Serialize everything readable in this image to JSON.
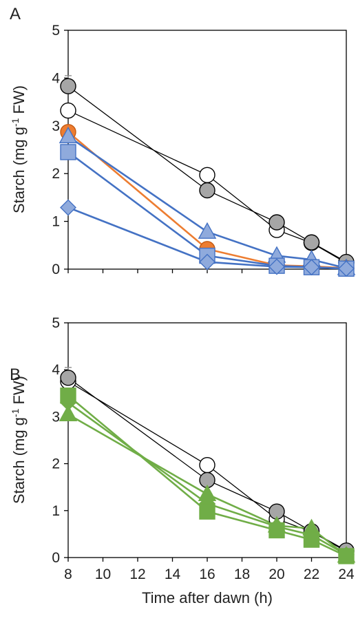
{
  "chart_data": [
    {
      "panel_label": "A",
      "type": "line",
      "xlabel": "",
      "ylabel": "Starch (mg g",
      "ylabel_sup": "-1",
      "ylabel_tail": " FW)",
      "xlim": [
        8,
        24
      ],
      "ylim": [
        0,
        5
      ],
      "yticks": [
        0,
        1,
        2,
        3,
        4,
        5
      ],
      "x": [
        8,
        16,
        20,
        22,
        24
      ],
      "grid": false,
      "series": [
        {
          "marker": "circle",
          "fill": "#ffffff",
          "line": "#000000",
          "values": [
            3.32,
            1.97,
            0.82,
            0.55,
            0.13
          ]
        },
        {
          "marker": "circle",
          "fill": "#a6a6a6",
          "line": "#000000",
          "values": [
            3.83,
            1.65,
            0.98,
            0.56,
            0.15
          ],
          "error": [
            0.22,
            0.05,
            0.05,
            0.05,
            0.03
          ]
        },
        {
          "marker": "circle",
          "fill": "#ed7d31",
          "line": "#ed7d31",
          "values": [
            2.87,
            0.42,
            0.08,
            0.06,
            0.02
          ]
        },
        {
          "marker": "triangle",
          "fill": "#8faadc",
          "line": "#4472c4",
          "values": [
            2.78,
            0.78,
            0.28,
            0.2,
            0.02
          ]
        },
        {
          "marker": "square",
          "fill": "#8faadc",
          "line": "#4472c4",
          "values": [
            2.45,
            0.28,
            0.07,
            0.04,
            0.01
          ]
        },
        {
          "marker": "diamond",
          "fill": "#8faadc",
          "line": "#4472c4",
          "values": [
            1.29,
            0.15,
            0.05,
            0.04,
            0.01
          ]
        }
      ]
    },
    {
      "panel_label": "B",
      "type": "line",
      "xlabel": "Time after dawn (h)",
      "ylabel": "Starch (mg g",
      "ylabel_sup": "-1",
      "ylabel_tail": " FW)",
      "xlim": [
        8,
        24
      ],
      "ylim": [
        0,
        5
      ],
      "yticks": [
        0,
        1,
        2,
        3,
        4,
        5
      ],
      "xticks": [
        8,
        10,
        12,
        14,
        16,
        18,
        20,
        22,
        24
      ],
      "x": [
        8,
        16,
        20,
        22,
        24
      ],
      "grid": false,
      "series": [
        {
          "marker": "circle",
          "fill": "#ffffff",
          "line": "#000000",
          "values": [
            3.75,
            1.97,
            0.82,
            0.55,
            0.13
          ]
        },
        {
          "marker": "circle",
          "fill": "#a6a6a6",
          "line": "#000000",
          "values": [
            3.83,
            1.65,
            0.98,
            0.56,
            0.15
          ],
          "error": [
            0.22,
            0.05,
            0.05,
            0.05,
            0.03
          ]
        },
        {
          "marker": "diamond",
          "fill": "#70ad47",
          "line": "#70ad47",
          "values": [
            3.3,
            1.15,
            0.66,
            0.48,
            0.06
          ]
        },
        {
          "marker": "triangle",
          "fill": "#70ad47",
          "line": "#70ad47",
          "values": [
            3.05,
            1.35,
            0.68,
            0.62,
            0.04
          ]
        },
        {
          "marker": "square",
          "fill": "#70ad47",
          "line": "#70ad47",
          "values": [
            3.45,
            0.98,
            0.58,
            0.38,
            0.03
          ]
        }
      ]
    }
  ]
}
